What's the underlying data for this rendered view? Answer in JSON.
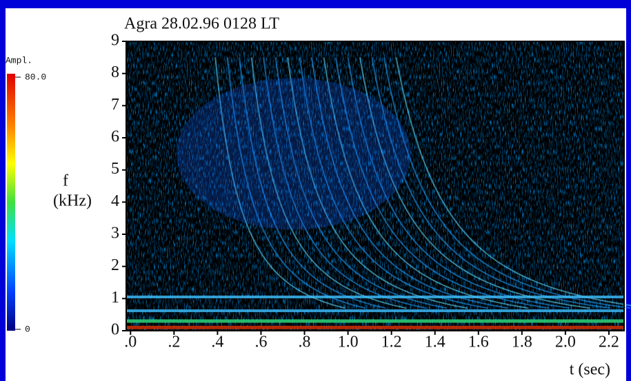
{
  "chart_data": {
    "type": "spectrogram",
    "title": "Agra 28.02.96 0128 LT",
    "xlabel": "t (sec)",
    "ylabel": [
      "f",
      "(kHz)"
    ],
    "xlim": [
      -0.02,
      2.27
    ],
    "xticks": [
      {
        "value": 0,
        "label": ".0"
      },
      {
        "value": 0.2,
        "label": ".2"
      },
      {
        "value": 0.4,
        "label": ".4"
      },
      {
        "value": 0.6,
        "label": ".6"
      },
      {
        "value": 0.8,
        "label": ".8"
      },
      {
        "value": 1,
        "label": "1.0"
      },
      1.2,
      1.4,
      1.6,
      1.8,
      {
        "value": 2,
        "label": "2.0"
      },
      2.2
    ],
    "ylim": [
      0,
      9
    ],
    "yticks": [
      0,
      1,
      2,
      3,
      4,
      5,
      6,
      7,
      8,
      9
    ],
    "colorbar": {
      "label": "Ampl.",
      "lim": [
        0,
        80
      ],
      "ticks": [
        {
          "value": 80,
          "label": "80.0"
        },
        0
      ]
    }
  }
}
